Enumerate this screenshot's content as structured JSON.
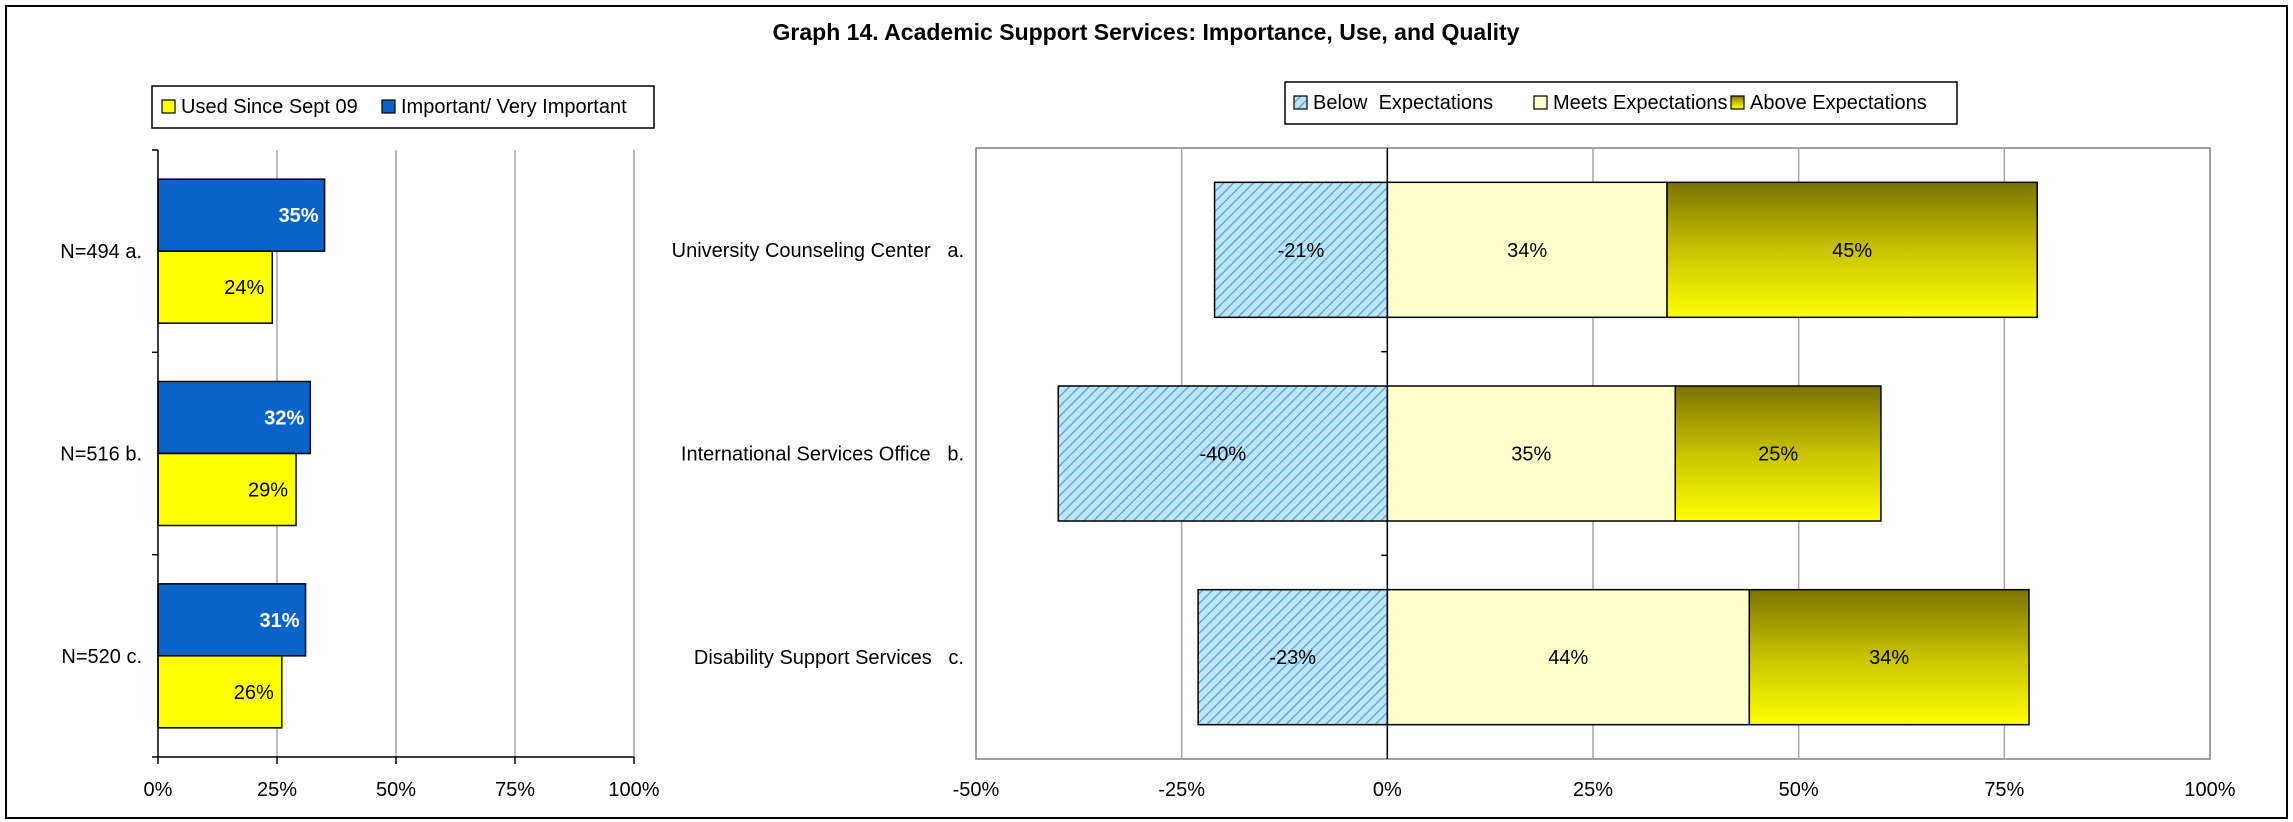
{
  "title": "Graph 14. Academic Support Services: Importance, Use, and Quality",
  "chart_data": [
    {
      "type": "bar",
      "orientation": "horizontal",
      "categories": [
        "N=494 a.",
        "N=516 b.",
        "N=520 c."
      ],
      "series": [
        {
          "name": "Important/ Very Important",
          "color": "#0a64c8",
          "values": [
            35,
            32,
            31
          ],
          "labels": [
            "35%",
            "32%",
            "31%"
          ]
        },
        {
          "name": "Used Since Sept 09",
          "color": "#ffff00",
          "values": [
            24,
            29,
            26
          ],
          "labels": [
            "24%",
            "29%",
            "26%"
          ]
        }
      ],
      "legend": {
        "placement": "top",
        "entries": [
          "Used Since Sept 09",
          "Important/ Very Important"
        ]
      },
      "xlim": [
        0,
        100
      ],
      "xticks": [
        "0%",
        "25%",
        "50%",
        "75%",
        "100%"
      ],
      "grid": true
    },
    {
      "type": "bar",
      "orientation": "horizontal",
      "stacked": true,
      "categories": [
        "University Counseling Center   a.",
        "International Services Office   b.",
        "Disability Support Services   c."
      ],
      "series": [
        {
          "name": "Below  Expectations",
          "color": "#9fd3f0",
          "values": [
            -21,
            -40,
            -23
          ],
          "labels": [
            "-21%",
            "-40%",
            "-23%"
          ]
        },
        {
          "name": "Meets Expectations",
          "color": "#ffffcc",
          "values": [
            34,
            35,
            44
          ],
          "labels": [
            "34%",
            "35%",
            "44%"
          ]
        },
        {
          "name": "Above Expectations",
          "color": "#ffff00",
          "values": [
            45,
            25,
            34
          ],
          "labels": [
            "45%",
            "25%",
            "34%"
          ]
        }
      ],
      "legend": {
        "placement": "top",
        "entries": [
          "Below  Expectations",
          "Meets Expectations",
          "Above Expectations"
        ]
      },
      "xlim": [
        -50,
        100
      ],
      "xticks": [
        "-50%",
        "-25%",
        "0%",
        "25%",
        "50%",
        "75%",
        "100%"
      ],
      "grid": true
    }
  ]
}
